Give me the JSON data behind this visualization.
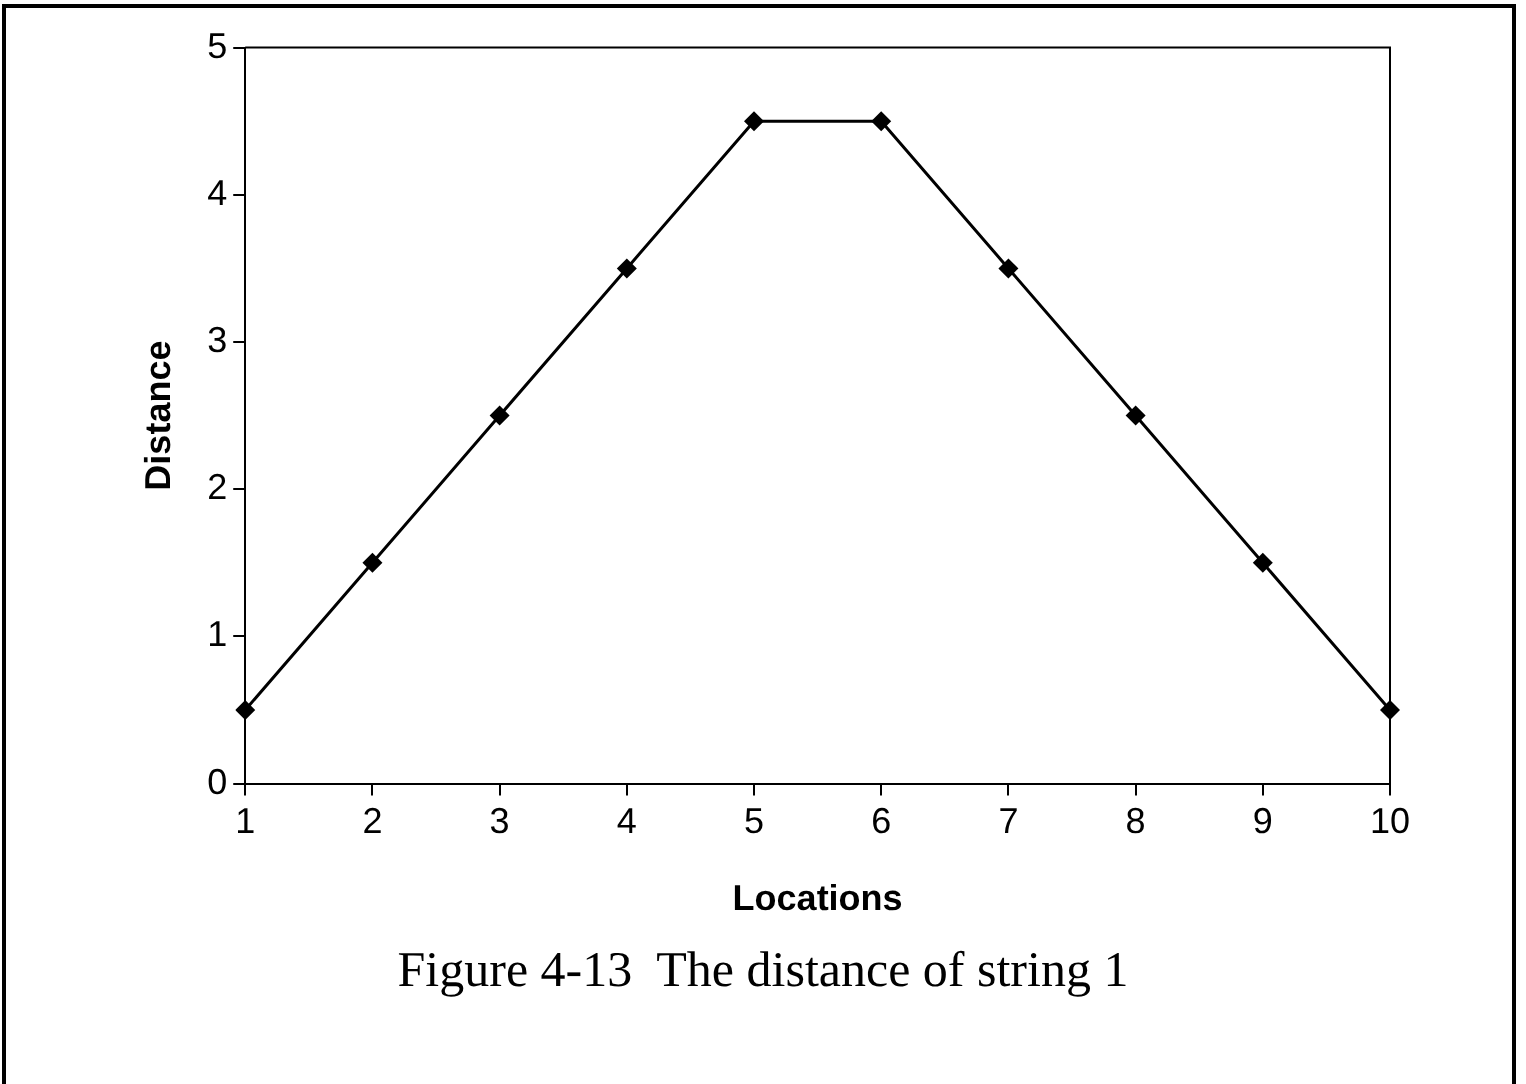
{
  "chart_data": {
    "type": "line",
    "xlabel": "Locations",
    "ylabel": "Distance",
    "categories": [
      "1",
      "2",
      "3",
      "4",
      "5",
      "6",
      "7",
      "8",
      "9",
      "10"
    ],
    "series": [
      {
        "color": "#000000",
        "values": [
          0.5,
          1.5,
          2.5,
          3.5,
          4.5,
          4.5,
          3.5,
          2.5,
          1.5,
          0.5
        ]
      }
    ],
    "ylim": [
      0,
      5
    ],
    "yticks": [
      0,
      1,
      2,
      3,
      4,
      5
    ],
    "grid": false,
    "legend": false,
    "marker": "diamond",
    "line_style": "solid",
    "annotations": [
      "Figure 4-13  The distance of string 1"
    ]
  }
}
